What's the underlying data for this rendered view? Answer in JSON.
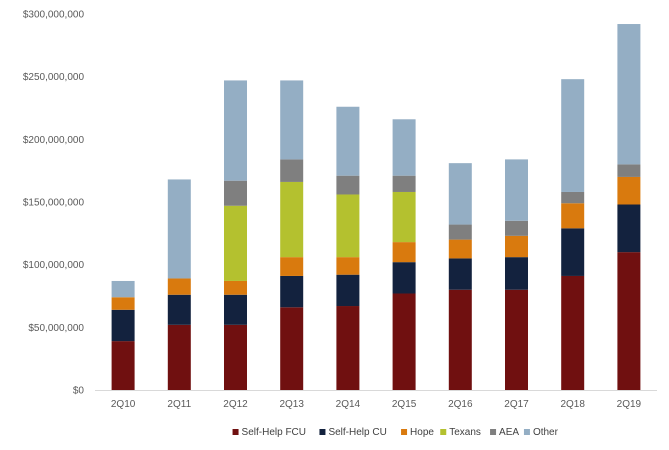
{
  "chart_data": {
    "type": "bar",
    "stacked": true,
    "categories": [
      "2Q10",
      "2Q11",
      "2Q12",
      "2Q13",
      "2Q14",
      "2Q15",
      "2Q16",
      "2Q17",
      "2Q18",
      "2Q19"
    ],
    "series": [
      {
        "name": "Self-Help FCU",
        "color": "#701010",
        "values": [
          39000000,
          52000000,
          52000000,
          66000000,
          67000000,
          77000000,
          80000000,
          80000000,
          91000000,
          110000000
        ]
      },
      {
        "name": "Self-Help CU",
        "color": "#13223e",
        "values": [
          25000000,
          24000000,
          24000000,
          25000000,
          25000000,
          25000000,
          25000000,
          26000000,
          38000000,
          38000000
        ]
      },
      {
        "name": "Hope",
        "color": "#d97a0e",
        "values": [
          10000000,
          13000000,
          11000000,
          15000000,
          14000000,
          16000000,
          15000000,
          17000000,
          20000000,
          22000000
        ]
      },
      {
        "name": "Texans",
        "color": "#b4c12f",
        "values": [
          0,
          0,
          60000000,
          60000000,
          50000000,
          40000000,
          0,
          0,
          0,
          0
        ]
      },
      {
        "name": "AEA",
        "color": "#7f7f7f",
        "values": [
          0,
          0,
          20000000,
          18000000,
          15000000,
          13000000,
          12000000,
          12000000,
          9000000,
          10000000
        ]
      },
      {
        "name": "Other",
        "color": "#94aec4",
        "values": [
          13000000,
          79000000,
          80000000,
          63000000,
          55000000,
          45000000,
          49000000,
          49000000,
          90000000,
          112000000
        ]
      }
    ],
    "ylim": [
      0,
      300000000
    ],
    "yticks": [
      0,
      50000000,
      100000000,
      150000000,
      200000000,
      250000000,
      300000000
    ],
    "ytick_labels": [
      "$0",
      "$50,000,000",
      "$100,000,000",
      "$150,000,000",
      "$200,000,000",
      "$250,000,000",
      "$300,000,000"
    ],
    "legend_position": "bottom",
    "grid": false
  }
}
